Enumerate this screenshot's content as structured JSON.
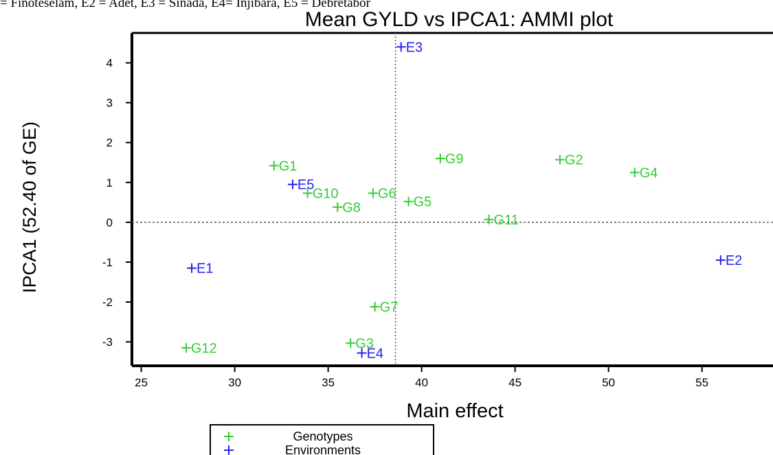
{
  "caption": "= Finoteselam, E2 = Adet, E3 = Sinada, E4= Injibara, E5 = Debretabor",
  "colors": {
    "genotypes": "#33cc33",
    "environments": "#2222ee"
  },
  "chart_data": {
    "type": "scatter",
    "title": "Mean GYLD vs IPCA1: AMMI plot",
    "xlabel": "Main effect",
    "ylabel": "IPCA1 (52.40 of GE)",
    "xlim": [
      24.5,
      58.8
    ],
    "ylim": [
      -3.6,
      4.75
    ],
    "xticks": [
      25,
      30,
      35,
      40,
      45,
      50,
      55
    ],
    "yticks": [
      -3,
      -2,
      -1,
      0,
      1,
      2,
      3,
      4
    ],
    "reference_lines": {
      "x": 38.6,
      "y": 0
    },
    "legend": {
      "position": "bottom-center",
      "entries": [
        "Genotypes",
        "Environments"
      ]
    },
    "series": [
      {
        "name": "Genotypes",
        "marker": "+",
        "points": [
          {
            "label": "G1",
            "x": 32.1,
            "y": 1.42
          },
          {
            "label": "G2",
            "x": 47.4,
            "y": 1.57
          },
          {
            "label": "G3",
            "x": 36.2,
            "y": -3.03
          },
          {
            "label": "G4",
            "x": 51.4,
            "y": 1.25
          },
          {
            "label": "G5",
            "x": 39.3,
            "y": 0.52
          },
          {
            "label": "G6",
            "x": 37.4,
            "y": 0.73
          },
          {
            "label": "G7",
            "x": 37.5,
            "y": -2.12
          },
          {
            "label": "G8",
            "x": 35.5,
            "y": 0.38
          },
          {
            "label": "G9",
            "x": 41.0,
            "y": 1.6
          },
          {
            "label": "G10",
            "x": 33.9,
            "y": 0.73
          },
          {
            "label": "G11",
            "x": 43.6,
            "y": 0.07
          },
          {
            "label": "G12",
            "x": 27.4,
            "y": -3.15
          }
        ]
      },
      {
        "name": "Environments",
        "marker": "+",
        "points": [
          {
            "label": "E1",
            "x": 27.7,
            "y": -1.15
          },
          {
            "label": "E2",
            "x": 56.0,
            "y": -0.95
          },
          {
            "label": "E3",
            "x": 38.9,
            "y": 4.4
          },
          {
            "label": "E4",
            "x": 36.8,
            "y": -3.28
          },
          {
            "label": "E5",
            "x": 33.1,
            "y": 0.95
          }
        ]
      }
    ]
  }
}
